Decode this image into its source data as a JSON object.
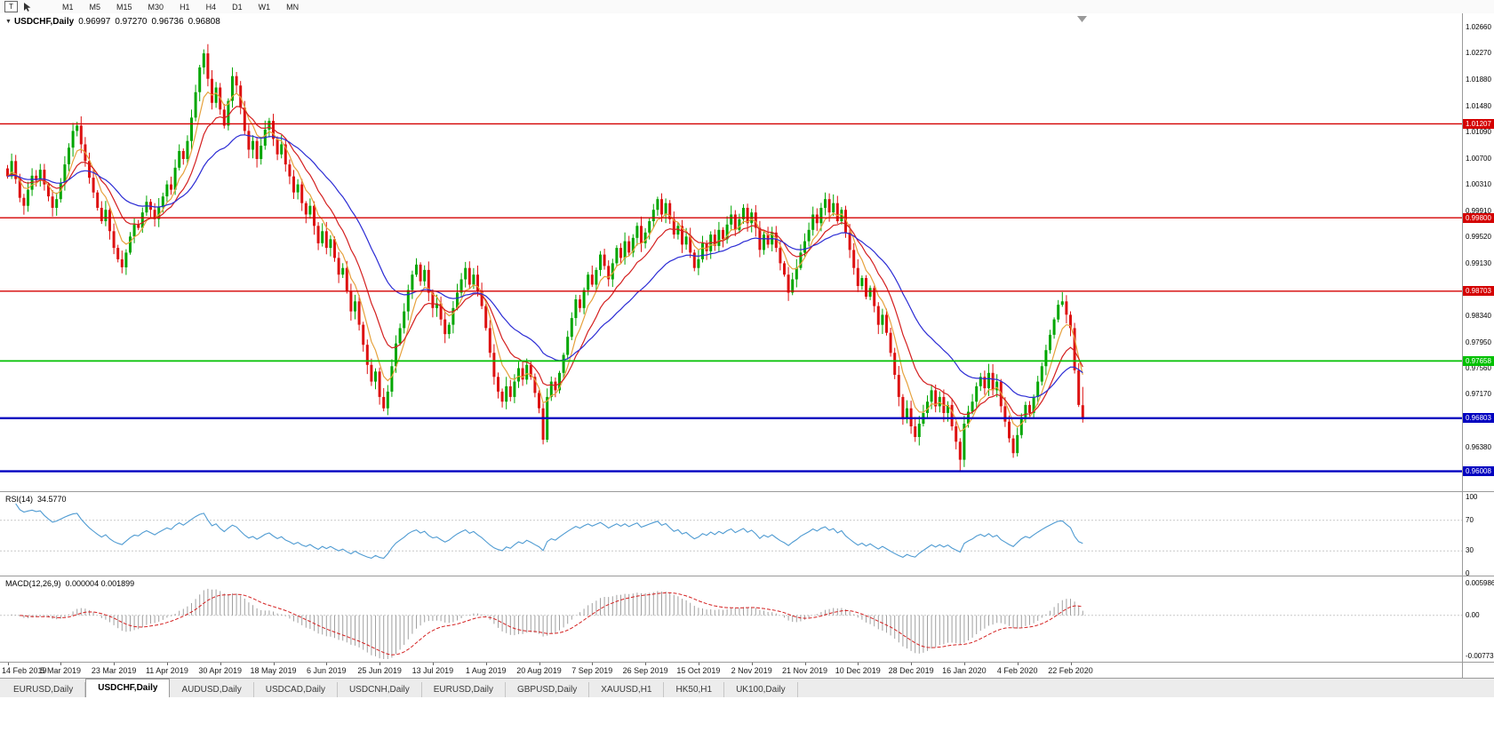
{
  "toolbar": {
    "tool_button": "T",
    "timeframes": [
      "M1",
      "M5",
      "M15",
      "M30",
      "H1",
      "H4",
      "D1",
      "W1",
      "MN"
    ]
  },
  "chart": {
    "symbol_period": "USDCHF,Daily",
    "open": "0.96997",
    "high": "0.97270",
    "low": "0.96736",
    "close": "0.96808"
  },
  "rsi": {
    "label": "RSI(14)",
    "value": "34.5770",
    "scale": [
      "100",
      "70",
      "30",
      "0"
    ],
    "levels": [
      70,
      30
    ],
    "color": "#4f9bd2"
  },
  "macd": {
    "label": "MACD(12,26,9)",
    "values": "0.000004 0.001899",
    "scale_max": "0.005986",
    "scale_zero": "0.00",
    "scale_min": "-0.00773",
    "scale_max_val": 0.005986,
    "scale_min_val": -0.00773,
    "histogram_color": "#a0a0a0",
    "signal_color": "#d42020"
  },
  "tabs": [
    {
      "label": "EURUSD,Daily",
      "active": false
    },
    {
      "label": "USDCHF,Daily",
      "active": true
    },
    {
      "label": "AUDUSD,Daily",
      "active": false
    },
    {
      "label": "USDCAD,Daily",
      "active": false
    },
    {
      "label": "USDCNH,Daily",
      "active": false
    },
    {
      "label": "EURUSD,Daily",
      "active": false
    },
    {
      "label": "GBPUSD,Daily",
      "active": false
    },
    {
      "label": "XAUUSD,H1",
      "active": false
    },
    {
      "label": "HK50,H1",
      "active": false
    },
    {
      "label": "UK100,Daily",
      "active": false
    }
  ],
  "chart_data": {
    "type": "candlestick",
    "symbol": "USDCHF",
    "timeframe": "Daily",
    "title": "USDCHF,Daily 0.96997 0.97270 0.96736 0.96808",
    "last_candle": {
      "open": 0.96997,
      "high": 0.9727,
      "low": 0.96736,
      "close": 0.96808
    },
    "price_range": {
      "max": 1.0286,
      "min": 0.9571
    },
    "colors": {
      "bull": "#00a600",
      "bear": "#dd1111"
    },
    "price_ticks": [
      "1.02660",
      "1.02270",
      "1.01880",
      "1.01480",
      "1.01090",
      "1.00700",
      "1.00310",
      "0.99910",
      "0.99520",
      "0.99130",
      "0.98730",
      "0.98340",
      "0.97950",
      "0.97560",
      "0.97170",
      "0.96770",
      "0.96380",
      "0.95990"
    ],
    "date_ticks": [
      "14 Feb 2019",
      "5 Mar 2019",
      "23 Mar 2019",
      "11 Apr 2019",
      "30 Apr 2019",
      "18 May 2019",
      "6 Jun 2019",
      "25 Jun 2019",
      "13 Jul 2019",
      "1 Aug 2019",
      "20 Aug 2019",
      "7 Sep 2019",
      "26 Sep 2019",
      "15 Oct 2019",
      "2 Nov 2019",
      "21 Nov 2019",
      "10 Dec 2019",
      "28 Dec 2019",
      "16 Jan 2020",
      "4 Feb 2020",
      "22 Feb 2020"
    ],
    "levels": [
      {
        "price": 1.01207,
        "label": "1.01207",
        "color": "#d40000",
        "width": 1.4
      },
      {
        "price": 0.998,
        "label": "0.99800",
        "color": "#d40000",
        "width": 1.4
      },
      {
        "price": 0.98703,
        "label": "0.98703",
        "color": "#d40000",
        "width": 1.4
      },
      {
        "price": 0.97658,
        "label": "0.97658",
        "color": "#00c000",
        "width": 1.8
      },
      {
        "price": 0.96803,
        "label": "0.96803",
        "color": "#0000c0",
        "width": 2.4
      },
      {
        "price": 0.96008,
        "label": "0.96008",
        "color": "#0000c0",
        "width": 2.4
      }
    ],
    "moving_averages": [
      {
        "period": 6,
        "color": "#e6a13c"
      },
      {
        "period": 13,
        "color": "#d42020"
      },
      {
        "period": 30,
        "color": "#2b2bd4"
      }
    ],
    "wick_overrides": {
      "16": {
        "high": 1.0122
      },
      "48": {
        "high": 1.0232
      },
      "131": {
        "low": 0.9641
      },
      "233": {
        "low": 0.9601
      },
      "246": {
        "low": 0.9621
      }
    },
    "closes": [
      1.0042,
      1.0065,
      1.0038,
      1.001,
      0.9998,
      1.0022,
      1.0043,
      1.0036,
      1.0052,
      1.003,
      1.0012,
      0.9995,
      1.0008,
      1.0032,
      1.006,
      1.0085,
      1.011,
      1.0118,
      1.009,
      1.0065,
      1.004,
      1.0018,
      0.9995,
      0.9975,
      0.9992,
      0.996,
      0.9935,
      0.9918,
      0.9906,
      0.9928,
      0.9952,
      0.997,
      0.9965,
      0.9988,
      1.0004,
      0.9992,
      0.9978,
      0.9996,
      1.0012,
      1.003,
      1.0022,
      1.0055,
      1.008,
      1.0068,
      1.0095,
      1.013,
      1.0168,
      1.0205,
      1.0226,
      1.0188,
      1.0152,
      1.0175,
      1.0142,
      1.0118,
      1.0155,
      1.0192,
      1.0178,
      1.0145,
      1.011,
      1.0082,
      1.0095,
      1.0068,
      1.0088,
      1.0112,
      1.0125,
      1.0098,
      1.0075,
      1.009,
      1.006,
      1.0042,
      1.0018,
      1.003,
      1.0002,
      0.9985,
      0.9998,
      0.9968,
      0.9942,
      0.996,
      0.9935,
      0.9948,
      0.992,
      0.9895,
      0.9905,
      0.987,
      0.984,
      0.9855,
      0.982,
      0.979,
      0.976,
      0.9735,
      0.975,
      0.9712,
      0.9695,
      0.972,
      0.9758,
      0.9792,
      0.9815,
      0.984,
      0.9872,
      0.9895,
      0.991,
      0.9885,
      0.9902,
      0.9868,
      0.9845,
      0.9852,
      0.9828,
      0.9806,
      0.982,
      0.9845,
      0.9868,
      0.9888,
      0.9905,
      0.988,
      0.9895,
      0.987,
      0.9848,
      0.9815,
      0.9778,
      0.9742,
      0.972,
      0.9705,
      0.9728,
      0.9712,
      0.9735,
      0.9755,
      0.9738,
      0.976,
      0.9742,
      0.9718,
      0.9695,
      0.9648,
      0.9712,
      0.9735,
      0.9722,
      0.9748,
      0.9775,
      0.9802,
      0.983,
      0.9858,
      0.9845,
      0.9872,
      0.9895,
      0.988,
      0.9902,
      0.9925,
      0.9908,
      0.9888,
      0.9912,
      0.9935,
      0.992,
      0.9945,
      0.9928,
      0.995,
      0.9968,
      0.9942,
      0.9958,
      0.9975,
      0.9992,
      1.0008,
      0.9985,
      1.0002,
      0.9978,
      0.9955,
      0.9968,
      0.994,
      0.9952,
      0.9928,
      0.9905,
      0.9918,
      0.9942,
      0.993,
      0.9955,
      0.9938,
      0.9962,
      0.9948,
      0.997,
      0.9985,
      0.9962,
      0.9978,
      0.9995,
      0.9972,
      0.9988,
      0.9965,
      0.9932,
      0.9955,
      0.994,
      0.9958,
      0.9935,
      0.9912,
      0.9895,
      0.9868,
      0.9888,
      0.9905,
      0.9928,
      0.9945,
      0.9962,
      0.9985,
      0.9972,
      0.9995,
      1.0008,
      0.9988,
      1.0002,
      0.9975,
      0.9992,
      0.9958,
      0.9932,
      0.9905,
      0.9878,
      0.989,
      0.9862,
      0.9875,
      0.9848,
      0.982,
      0.9835,
      0.9808,
      0.9778,
      0.9745,
      0.9712,
      0.968,
      0.9695,
      0.9668,
      0.9652,
      0.9672,
      0.9688,
      0.9705,
      0.9722,
      0.9698,
      0.9712,
      0.9688,
      0.97,
      0.9668,
      0.9645,
      0.9618,
      0.9672,
      0.969,
      0.9705,
      0.9728,
      0.9742,
      0.9725,
      0.9748,
      0.9722,
      0.9735,
      0.9698,
      0.9675,
      0.965,
      0.9628,
      0.9655,
      0.9682,
      0.97,
      0.9688,
      0.9712,
      0.9735,
      0.9758,
      0.9782,
      0.9805,
      0.9828,
      0.985,
      0.9855,
      0.9835,
      0.9815,
      0.9752,
      0.97,
      0.96808
    ]
  }
}
